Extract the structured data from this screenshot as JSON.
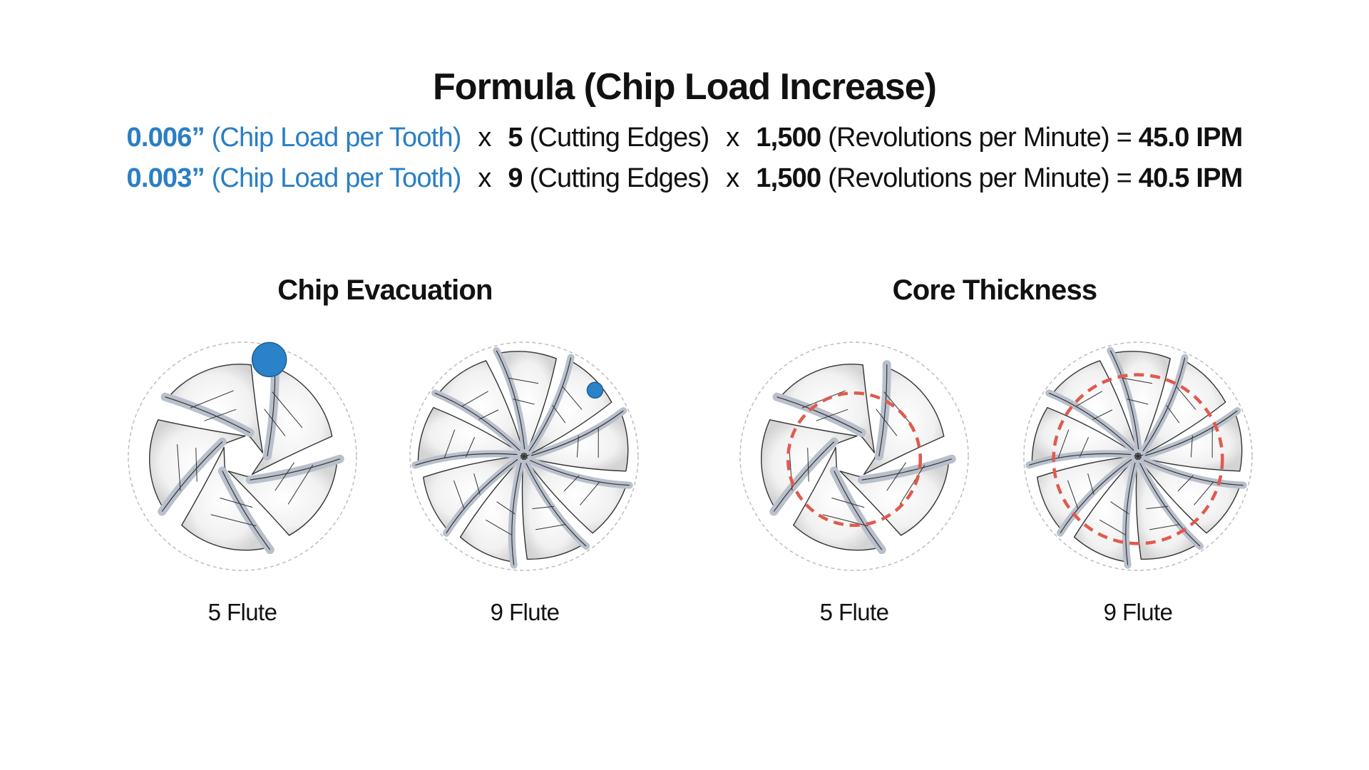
{
  "title": "Formula (Chip Load Increase)",
  "formulas": [
    {
      "chip_load": "0.006”",
      "chip_load_label": "(Chip Load per Tooth)",
      "times1": "x",
      "edges": "5",
      "edges_label": "(Cutting Edges)",
      "times2": "x",
      "rpm": "1,500",
      "rpm_label": "(Revolutions per Minute)",
      "equals": "=",
      "result": "45.0 IPM"
    },
    {
      "chip_load": "0.003”",
      "chip_load_label": "(Chip Load per Tooth)",
      "times1": "x",
      "edges": "9",
      "edges_label": "(Cutting Edges)",
      "times2": "x",
      "rpm": "1,500",
      "rpm_label": "(Revolutions per Minute)",
      "equals": "=",
      "result": "40.5 IPM"
    }
  ],
  "sections": {
    "chip_evacuation": {
      "title": "Chip Evacuation",
      "five_flute_label": "5 Flute",
      "nine_flute_label": "9 Flute"
    },
    "core_thickness": {
      "title": "Core Thickness",
      "five_flute_label": "5 Flute",
      "nine_flute_label": "9 Flute"
    }
  },
  "colors": {
    "accent_blue": "#2a7fc4",
    "chip_blue": "#2a82c8",
    "core_red": "#e05a4f",
    "flute_edge": "#b9c0cc",
    "outline": "#333333"
  },
  "tools": [
    {
      "section": "chip_evacuation",
      "flutes": 5,
      "chip": "large"
    },
    {
      "section": "chip_evacuation",
      "flutes": 9,
      "chip": "small"
    },
    {
      "section": "core_thickness",
      "flutes": 5,
      "core": "small"
    },
    {
      "section": "core_thickness",
      "flutes": 9,
      "core": "large"
    }
  ]
}
